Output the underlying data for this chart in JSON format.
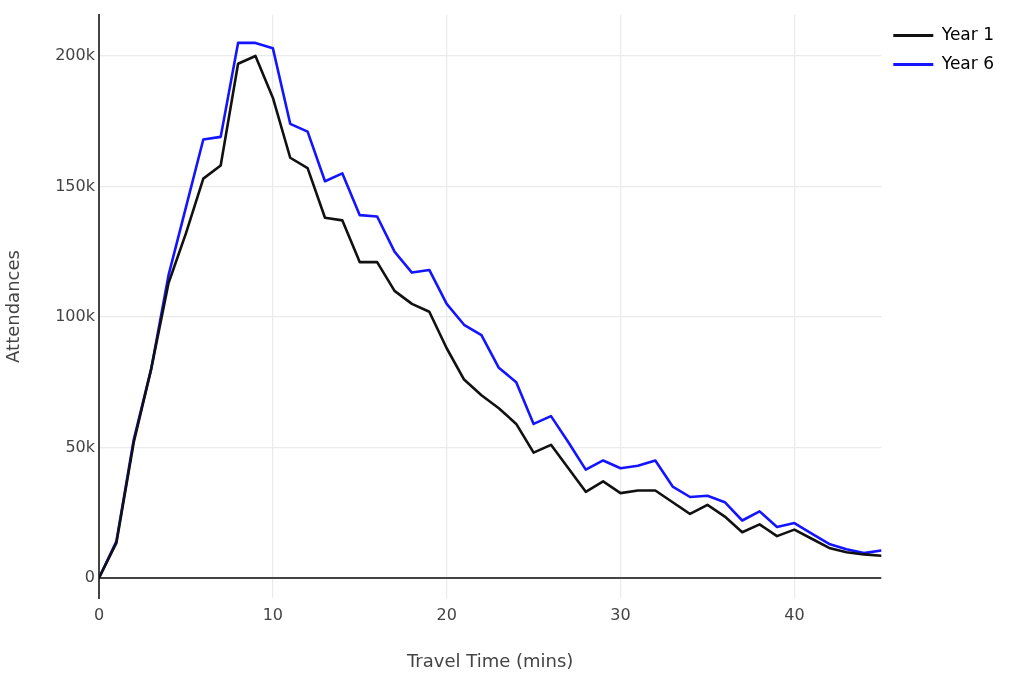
{
  "chart_data": {
    "type": "line",
    "xlabel": "Travel Time (mins)",
    "ylabel": "Attendances",
    "x": [
      0,
      1,
      2,
      3,
      4,
      5,
      6,
      7,
      8,
      9,
      10,
      11,
      12,
      13,
      14,
      15,
      16,
      17,
      18,
      19,
      20,
      21,
      22,
      23,
      24,
      25,
      26,
      27,
      28,
      29,
      30,
      31,
      32,
      33,
      34,
      35,
      36,
      37,
      38,
      39,
      40,
      41,
      42,
      43,
      44,
      45
    ],
    "series": [
      {
        "name": "Year 1",
        "color": "#111111",
        "values": [
          0,
          13400,
          52000,
          80000,
          113000,
          132000,
          153000,
          158000,
          197000,
          200000,
          184000,
          161000,
          157000,
          138000,
          137000,
          121000,
          121000,
          110000,
          105000,
          102000,
          88000,
          76000,
          70000,
          65000,
          59000,
          48000,
          51000,
          42000,
          33000,
          37000,
          32500,
          33500,
          33500,
          29000,
          24500,
          28000,
          23500,
          17500,
          20500,
          16000,
          18500,
          15000,
          11500,
          9800,
          9000,
          8500
        ]
      },
      {
        "name": "Year 6",
        "color": "#1414ff",
        "values": [
          0,
          14000,
          53000,
          80000,
          116000,
          142000,
          168000,
          169000,
          205000,
          205000,
          203000,
          174000,
          171000,
          152000,
          155000,
          139000,
          138500,
          125000,
          117000,
          118000,
          105000,
          97000,
          93000,
          80500,
          75000,
          59000,
          62000,
          52000,
          41500,
          45000,
          42000,
          43000,
          45000,
          35000,
          31000,
          31500,
          29000,
          22000,
          25500,
          19500,
          21000,
          17000,
          13000,
          11000,
          9500,
          10500
        ]
      }
    ],
    "xlim": [
      0,
      45
    ],
    "xticks": [
      0,
      10,
      20,
      30,
      40
    ],
    "ylim": [
      -7700,
      215700
    ],
    "yticks": [
      {
        "value": 0,
        "label": "0"
      },
      {
        "value": 50000,
        "label": "50k"
      },
      {
        "value": 100000,
        "label": "100k"
      },
      {
        "value": 150000,
        "label": "150k"
      },
      {
        "value": 200000,
        "label": "200k"
      }
    ],
    "grid": true,
    "legend": "top right",
    "marker": "none",
    "line_style": "solid"
  }
}
